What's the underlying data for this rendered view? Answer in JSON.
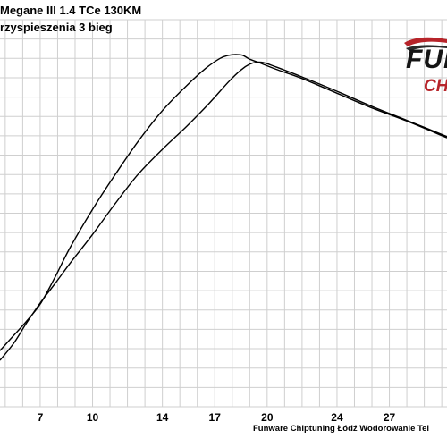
{
  "header": {
    "title": "Megane III 1.4 TCe 130KM",
    "subtitle": "rzyspieszenia 3 bieg"
  },
  "logo": {
    "word": "FUN",
    "sub": "CH"
  },
  "footer": {
    "text": "Funware Chiptuning Łódź Wodorowanie Tel"
  },
  "colors": {
    "grid": "#cfcfcf",
    "line": "#000000",
    "logo_red": "#b7242a",
    "background": "#ffffff"
  },
  "chart_data": {
    "type": "line",
    "title": "Megane III 1.4 TCe 130KM",
    "subtitle": "rzyspieszenia 3 bieg",
    "xlabel": "",
    "ylabel": "",
    "xlim": [
      4.7,
      30.3
    ],
    "xticks": [
      7,
      10,
      14,
      17,
      20,
      24,
      27
    ],
    "grid": true,
    "legend": "none",
    "series": [
      {
        "x": [
          4.7,
          5.5,
          6.2,
          7.0,
          7.8,
          8.7,
          10.0,
          11.3,
          12.6,
          14.0,
          15.4,
          16.5,
          17.3,
          17.8,
          18.2,
          18.6,
          19.0,
          19.6,
          20.5,
          22.0,
          24.0,
          26.0,
          28.0,
          30.3
        ],
        "y": [
          0.145,
          0.185,
          0.22,
          0.265,
          0.33,
          0.41,
          0.51,
          0.6,
          0.685,
          0.765,
          0.83,
          0.875,
          0.9,
          0.908,
          0.91,
          0.908,
          0.898,
          0.888,
          0.872,
          0.848,
          0.81,
          0.772,
          0.738,
          0.695
        ]
      },
      {
        "x": [
          4.7,
          5.5,
          6.2,
          7.0,
          7.8,
          8.7,
          10.0,
          11.3,
          12.6,
          14.0,
          15.4,
          16.7,
          17.8,
          18.5,
          19.0,
          19.4,
          19.8,
          20.5,
          22.0,
          24.0,
          26.0,
          28.0,
          30.3
        ],
        "y": [
          0.12,
          0.165,
          0.215,
          0.268,
          0.315,
          0.37,
          0.445,
          0.525,
          0.6,
          0.665,
          0.725,
          0.785,
          0.84,
          0.87,
          0.885,
          0.89,
          0.889,
          0.878,
          0.852,
          0.815,
          0.776,
          0.74,
          0.698
        ]
      }
    ]
  }
}
